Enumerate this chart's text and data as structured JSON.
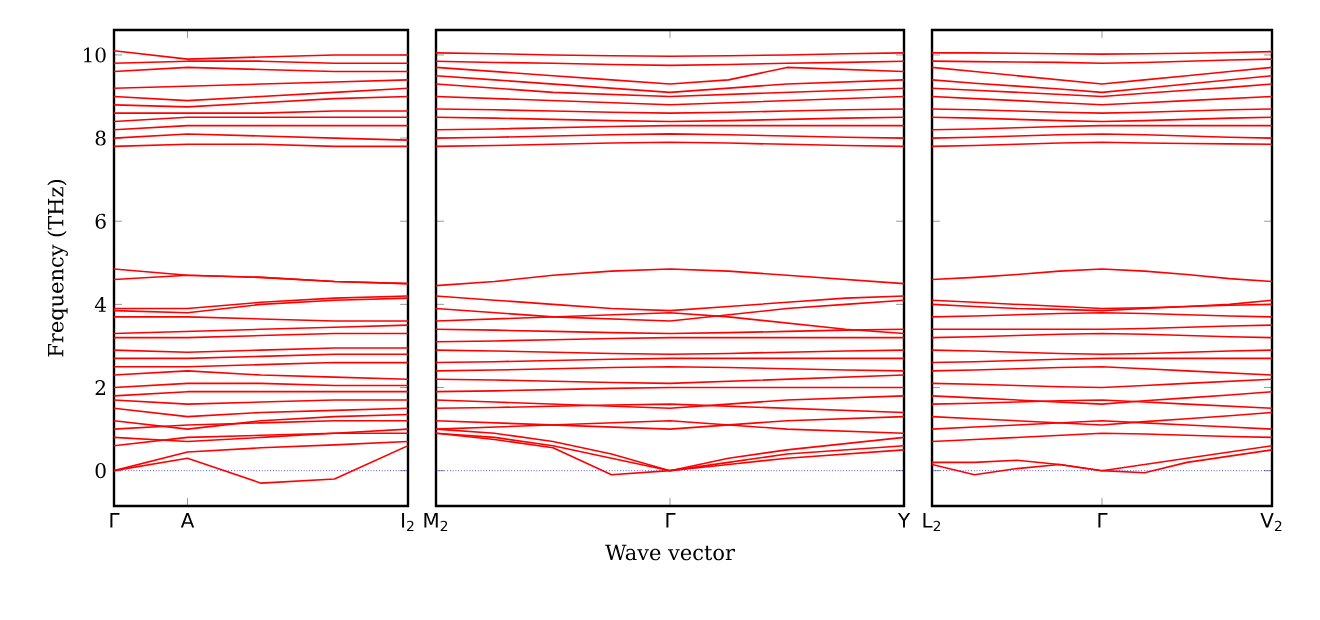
{
  "chart_data": [
    {
      "type": "line",
      "ylabel": "Frequency (THz)",
      "categories": [
        "Γ",
        "A",
        null,
        null,
        "I$_{2}$"
      ],
      "ylim": [
        -0.85,
        10.6
      ],
      "yticks": [
        0,
        2,
        4,
        6,
        8,
        10
      ],
      "ref_lines": [
        {
          "axis": "y",
          "value": 0,
          "color": "#0000ff",
          "line_style": "dotted"
        }
      ],
      "series": [
        {
          "color": "#ff0000",
          "values": [
            0,
            0.3,
            -0.3,
            -0.2,
            0.6
          ]
        },
        {
          "color": "#ff0000",
          "values": [
            0,
            0.45,
            0.55,
            0.62,
            0.7
          ]
        },
        {
          "color": "#ff0000",
          "values": [
            0.6,
            0.8,
            0.85,
            0.9,
            0.9
          ]
        },
        {
          "color": "#ff0000",
          "values": [
            0.8,
            0.7,
            0.8,
            0.9,
            1.0
          ]
        },
        {
          "color": "#ff0000",
          "values": [
            1.0,
            1.1,
            1.15,
            1.2,
            1.2
          ]
        },
        {
          "color": "#ff0000",
          "values": [
            1.2,
            1.0,
            1.2,
            1.3,
            1.35
          ]
        },
        {
          "color": "#ff0000",
          "values": [
            1.5,
            1.3,
            1.4,
            1.45,
            1.5
          ]
        },
        {
          "color": "#ff0000",
          "values": [
            1.7,
            1.6,
            1.65,
            1.7,
            1.7
          ]
        },
        {
          "color": "#ff0000",
          "values": [
            1.8,
            1.9,
            1.9,
            1.9,
            1.9
          ]
        },
        {
          "color": "#ff0000",
          "values": [
            2.0,
            2.1,
            2.1,
            2.05,
            2.05
          ]
        },
        {
          "color": "#ff0000",
          "values": [
            2.3,
            2.4,
            2.3,
            2.25,
            2.2
          ]
        },
        {
          "color": "#ff0000",
          "values": [
            2.5,
            2.5,
            2.55,
            2.6,
            2.6
          ]
        },
        {
          "color": "#ff0000",
          "values": [
            2.7,
            2.7,
            2.75,
            2.8,
            2.8
          ]
        },
        {
          "color": "#ff0000",
          "values": [
            2.9,
            2.85,
            2.9,
            2.95,
            2.95
          ]
        },
        {
          "color": "#ff0000",
          "values": [
            3.2,
            3.2,
            3.25,
            3.3,
            3.3
          ]
        },
        {
          "color": "#ff0000",
          "values": [
            3.3,
            3.35,
            3.4,
            3.45,
            3.5
          ]
        },
        {
          "color": "#ff0000",
          "values": [
            3.7,
            3.7,
            3.65,
            3.6,
            3.6
          ]
        },
        {
          "color": "#ff0000",
          "values": [
            3.9,
            3.9,
            4.05,
            4.15,
            4.2
          ]
        },
        {
          "color": "#ff0000",
          "values": [
            3.85,
            3.8,
            4.0,
            4.1,
            4.15
          ]
        },
        {
          "color": "#ff0000",
          "values": [
            4.6,
            4.7,
            4.65,
            4.55,
            4.5
          ]
        },
        {
          "color": "#ff0000",
          "values": [
            4.85,
            4.7,
            4.65,
            4.55,
            4.5
          ]
        },
        {
          "color": "#ff0000",
          "values": [
            7.8,
            7.85,
            7.85,
            7.8,
            7.8
          ]
        },
        {
          "color": "#ff0000",
          "values": [
            8.0,
            8.1,
            8.05,
            8.0,
            7.95
          ]
        },
        {
          "color": "#ff0000",
          "values": [
            8.2,
            8.3,
            8.3,
            8.3,
            8.3
          ]
        },
        {
          "color": "#ff0000",
          "values": [
            8.4,
            8.5,
            8.5,
            8.5,
            8.5
          ]
        },
        {
          "color": "#ff0000",
          "values": [
            8.6,
            8.6,
            8.6,
            8.65,
            8.65
          ]
        },
        {
          "color": "#ff0000",
          "values": [
            8.8,
            8.75,
            8.85,
            8.95,
            9.0
          ]
        },
        {
          "color": "#ff0000",
          "values": [
            9.0,
            8.9,
            9.0,
            9.1,
            9.2
          ]
        },
        {
          "color": "#ff0000",
          "values": [
            9.2,
            9.25,
            9.3,
            9.35,
            9.4
          ]
        },
        {
          "color": "#ff0000",
          "values": [
            9.6,
            9.7,
            9.65,
            9.6,
            9.6
          ]
        },
        {
          "color": "#ff0000",
          "values": [
            9.8,
            9.85,
            9.85,
            9.8,
            9.8
          ]
        },
        {
          "color": "#ff0000",
          "values": [
            10.1,
            9.9,
            9.95,
            10.0,
            10.0
          ]
        }
      ]
    },
    {
      "type": "line",
      "xlabel": "Wave vector",
      "categories": [
        "M$_{2}$",
        null,
        null,
        null,
        "Γ",
        null,
        null,
        null,
        "Y"
      ],
      "ylim": [
        -0.85,
        10.6
      ],
      "tick_labels": "x",
      "yticks": [
        0,
        2,
        4,
        6,
        8,
        10
      ],
      "ref_lines": [
        {
          "axis": "y",
          "value": 0,
          "color": "#0000ff",
          "line_style": "dotted"
        }
      ],
      "series": [
        {
          "color": "#ff0000",
          "values": [
            0.9,
            0.75,
            0.55,
            -0.1,
            0,
            0.3,
            0.5,
            0.65,
            0.8
          ]
        },
        {
          "color": "#ff0000",
          "values": [
            0.9,
            0.8,
            0.6,
            0.3,
            0,
            0.2,
            0.4,
            0.5,
            0.6
          ]
        },
        {
          "color": "#ff0000",
          "values": [
            1.0,
            0.9,
            0.7,
            0.4,
            0,
            0.15,
            0.3,
            0.4,
            0.5
          ]
        },
        {
          "color": "#ff0000",
          "values": [
            1.0,
            1.05,
            1.1,
            1.15,
            1.2,
            1.1,
            1.0,
            0.95,
            0.9
          ]
        },
        {
          "color": "#ff0000",
          "values": [
            1.2,
            1.15,
            1.1,
            1.05,
            1.0,
            1.1,
            1.2,
            1.25,
            1.3
          ]
        },
        {
          "color": "#ff0000",
          "values": [
            1.5,
            1.52,
            1.55,
            1.58,
            1.6,
            1.55,
            1.5,
            1.45,
            1.4
          ]
        },
        {
          "color": "#ff0000",
          "values": [
            1.7,
            1.65,
            1.6,
            1.55,
            1.5,
            1.6,
            1.7,
            1.75,
            1.8
          ]
        },
        {
          "color": "#ff0000",
          "values": [
            1.9,
            1.92,
            1.95,
            1.98,
            2.0,
            2.0,
            2.0,
            2.0,
            2.0
          ]
        },
        {
          "color": "#ff0000",
          "values": [
            2.2,
            2.18,
            2.15,
            2.12,
            2.1,
            2.15,
            2.2,
            2.25,
            2.3
          ]
        },
        {
          "color": "#ff0000",
          "values": [
            2.4,
            2.42,
            2.45,
            2.48,
            2.5,
            2.48,
            2.45,
            2.42,
            2.4
          ]
        },
        {
          "color": "#ff0000",
          "values": [
            2.6,
            2.62,
            2.65,
            2.68,
            2.7,
            2.7,
            2.7,
            2.7,
            2.7
          ]
        },
        {
          "color": "#ff0000",
          "values": [
            2.9,
            2.88,
            2.85,
            2.82,
            2.8,
            2.82,
            2.85,
            2.88,
            2.9
          ]
        },
        {
          "color": "#ff0000",
          "values": [
            3.1,
            3.12,
            3.15,
            3.18,
            3.2,
            3.2,
            3.2,
            3.2,
            3.2
          ]
        },
        {
          "color": "#ff0000",
          "values": [
            3.4,
            3.38,
            3.35,
            3.32,
            3.3,
            3.32,
            3.35,
            3.38,
            3.4
          ]
        },
        {
          "color": "#ff0000",
          "values": [
            3.6,
            3.65,
            3.7,
            3.75,
            3.8,
            3.7,
            3.55,
            3.4,
            3.3
          ]
        },
        {
          "color": "#ff0000",
          "values": [
            3.9,
            3.8,
            3.7,
            3.65,
            3.6,
            3.75,
            3.9,
            4.0,
            4.1
          ]
        },
        {
          "color": "#ff0000",
          "values": [
            4.2,
            4.1,
            4.0,
            3.9,
            3.85,
            3.95,
            4.05,
            4.15,
            4.2
          ]
        },
        {
          "color": "#ff0000",
          "values": [
            4.45,
            4.55,
            4.7,
            4.8,
            4.85,
            4.8,
            4.7,
            4.6,
            4.5
          ]
        },
        {
          "color": "#ff0000",
          "values": [
            7.8,
            7.82,
            7.85,
            7.88,
            7.9,
            7.88,
            7.85,
            7.82,
            7.8
          ]
        },
        {
          "color": "#ff0000",
          "values": [
            8.0,
            8.02,
            8.05,
            8.08,
            8.1,
            8.08,
            8.05,
            8.02,
            8.0
          ]
        },
        {
          "color": "#ff0000",
          "values": [
            8.2,
            8.22,
            8.25,
            8.28,
            8.3,
            8.3,
            8.3,
            8.3,
            8.3
          ]
        },
        {
          "color": "#ff0000",
          "values": [
            8.5,
            8.48,
            8.45,
            8.42,
            8.4,
            8.42,
            8.45,
            8.48,
            8.5
          ]
        },
        {
          "color": "#ff0000",
          "values": [
            8.7,
            8.68,
            8.65,
            8.62,
            8.6,
            8.62,
            8.65,
            8.68,
            8.7
          ]
        },
        {
          "color": "#ff0000",
          "values": [
            9.0,
            8.95,
            8.9,
            8.85,
            8.8,
            8.85,
            8.9,
            8.95,
            9.0
          ]
        },
        {
          "color": "#ff0000",
          "values": [
            9.3,
            9.2,
            9.1,
            9.05,
            9.0,
            9.05,
            9.1,
            9.15,
            9.2
          ]
        },
        {
          "color": "#ff0000",
          "values": [
            9.5,
            9.4,
            9.3,
            9.2,
            9.1,
            9.2,
            9.3,
            9.35,
            9.4
          ]
        },
        {
          "color": "#ff0000",
          "values": [
            9.7,
            9.6,
            9.5,
            9.4,
            9.3,
            9.4,
            9.7,
            9.65,
            9.6
          ]
        },
        {
          "color": "#ff0000",
          "values": [
            9.85,
            9.82,
            9.8,
            9.77,
            9.75,
            9.77,
            9.8,
            9.82,
            9.85
          ]
        },
        {
          "color": "#ff0000",
          "values": [
            10.05,
            10.03,
            10.0,
            9.98,
            9.97,
            9.98,
            10.0,
            10.03,
            10.05
          ]
        }
      ]
    },
    {
      "type": "line",
      "categories": [
        "L$_{2}$",
        null,
        null,
        null,
        "Γ",
        null,
        null,
        null,
        "V$_{2}$"
      ],
      "ylim": [
        -0.85,
        10.6
      ],
      "tick_labels": "x",
      "yticks": [
        0,
        2,
        4,
        6,
        8,
        10
      ],
      "ref_lines": [
        {
          "axis": "y",
          "value": 0,
          "color": "#0000ff",
          "line_style": "dotted"
        }
      ],
      "series": [
        {
          "color": "#ff0000",
          "values": [
            0.15,
            -0.1,
            0.05,
            0.15,
            0,
            -0.05,
            0.2,
            0.35,
            0.5
          ]
        },
        {
          "color": "#ff0000",
          "values": [
            0.2,
            0.2,
            0.25,
            0.15,
            0,
            0.15,
            0.3,
            0.45,
            0.6
          ]
        },
        {
          "color": "#ff0000",
          "values": [
            0.7,
            0.75,
            0.8,
            0.85,
            0.9,
            0.88,
            0.85,
            0.82,
            0.8
          ]
        },
        {
          "color": "#ff0000",
          "values": [
            1.0,
            1.05,
            1.1,
            1.15,
            1.2,
            1.15,
            1.1,
            1.05,
            1.0
          ]
        },
        {
          "color": "#ff0000",
          "values": [
            1.3,
            1.25,
            1.2,
            1.15,
            1.1,
            1.18,
            1.25,
            1.32,
            1.4
          ]
        },
        {
          "color": "#ff0000",
          "values": [
            1.6,
            1.62,
            1.65,
            1.68,
            1.7,
            1.65,
            1.6,
            1.55,
            1.5
          ]
        },
        {
          "color": "#ff0000",
          "values": [
            1.8,
            1.75,
            1.7,
            1.65,
            1.6,
            1.68,
            1.75,
            1.82,
            1.9
          ]
        },
        {
          "color": "#ff0000",
          "values": [
            2.1,
            2.08,
            2.05,
            2.02,
            2.0,
            2.05,
            2.1,
            2.15,
            2.2
          ]
        },
        {
          "color": "#ff0000",
          "values": [
            2.4,
            2.42,
            2.45,
            2.48,
            2.5,
            2.45,
            2.4,
            2.35,
            2.3
          ]
        },
        {
          "color": "#ff0000",
          "values": [
            2.6,
            2.62,
            2.65,
            2.68,
            2.7,
            2.7,
            2.7,
            2.7,
            2.7
          ]
        },
        {
          "color": "#ff0000",
          "values": [
            2.9,
            2.88,
            2.85,
            2.82,
            2.8,
            2.82,
            2.85,
            2.88,
            2.9
          ]
        },
        {
          "color": "#ff0000",
          "values": [
            3.2,
            3.22,
            3.25,
            3.28,
            3.3,
            3.28,
            3.25,
            3.22,
            3.2
          ]
        },
        {
          "color": "#ff0000",
          "values": [
            3.4,
            3.4,
            3.4,
            3.4,
            3.4,
            3.42,
            3.45,
            3.48,
            3.5
          ]
        },
        {
          "color": "#ff0000",
          "values": [
            3.7,
            3.72,
            3.75,
            3.78,
            3.8,
            3.78,
            3.75,
            3.72,
            3.7
          ]
        },
        {
          "color": "#ff0000",
          "values": [
            4.0,
            3.95,
            3.9,
            3.88,
            3.85,
            3.9,
            3.95,
            4.0,
            4.1
          ]
        },
        {
          "color": "#ff0000",
          "values": [
            4.1,
            4.05,
            4.0,
            3.95,
            3.9,
            3.92,
            3.95,
            3.98,
            4.0
          ]
        },
        {
          "color": "#ff0000",
          "values": [
            4.6,
            4.65,
            4.72,
            4.8,
            4.85,
            4.8,
            4.72,
            4.62,
            4.55
          ]
        },
        {
          "color": "#ff0000",
          "values": [
            7.8,
            7.82,
            7.85,
            7.88,
            7.9,
            7.88,
            7.87,
            7.86,
            7.85
          ]
        },
        {
          "color": "#ff0000",
          "values": [
            8.0,
            8.02,
            8.05,
            8.08,
            8.1,
            8.08,
            8.05,
            8.02,
            8.0
          ]
        },
        {
          "color": "#ff0000",
          "values": [
            8.2,
            8.22,
            8.25,
            8.28,
            8.3,
            8.3,
            8.3,
            8.3,
            8.3
          ]
        },
        {
          "color": "#ff0000",
          "values": [
            8.5,
            8.48,
            8.45,
            8.42,
            8.4,
            8.42,
            8.45,
            8.48,
            8.5
          ]
        },
        {
          "color": "#ff0000",
          "values": [
            8.7,
            8.68,
            8.65,
            8.62,
            8.6,
            8.62,
            8.65,
            8.68,
            8.7
          ]
        },
        {
          "color": "#ff0000",
          "values": [
            9.0,
            8.95,
            8.9,
            8.85,
            8.8,
            8.85,
            8.9,
            8.95,
            9.0
          ]
        },
        {
          "color": "#ff0000",
          "values": [
            9.2,
            9.15,
            9.1,
            9.05,
            9.0,
            9.08,
            9.15,
            9.22,
            9.3
          ]
        },
        {
          "color": "#ff0000",
          "values": [
            9.4,
            9.32,
            9.25,
            9.18,
            9.1,
            9.2,
            9.3,
            9.4,
            9.5
          ]
        },
        {
          "color": "#ff0000",
          "values": [
            9.7,
            9.6,
            9.5,
            9.4,
            9.3,
            9.4,
            9.5,
            9.6,
            9.7
          ]
        },
        {
          "color": "#ff0000",
          "values": [
            9.85,
            9.84,
            9.83,
            9.82,
            9.8,
            9.82,
            9.85,
            9.88,
            9.9
          ]
        },
        {
          "color": "#ff0000",
          "values": [
            10.05,
            10.05,
            10.04,
            10.03,
            10.02,
            10.03,
            10.04,
            10.06,
            10.08
          ]
        }
      ]
    }
  ]
}
